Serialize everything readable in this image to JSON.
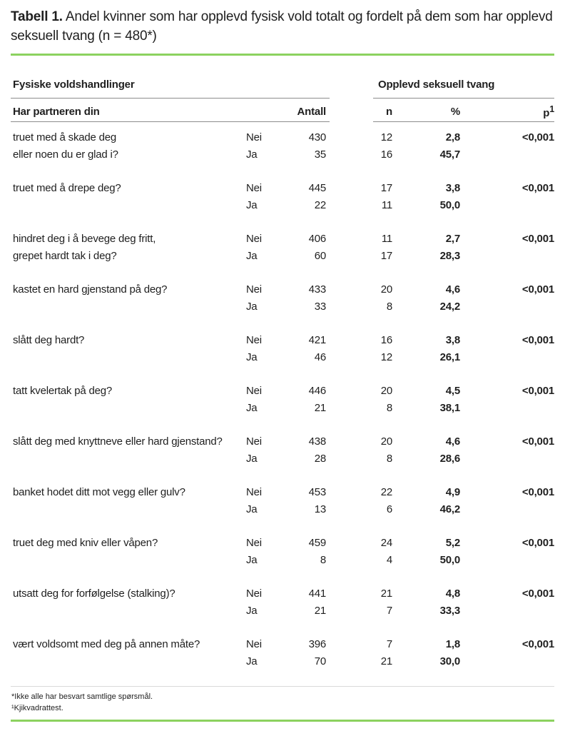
{
  "title": {
    "bold": "Tabell 1.",
    "rest": " Andel kvinner som har opplevd fysisk vold totalt og fordelt på dem som har opplevd seksuell tvang (n = 480*)"
  },
  "table": {
    "group_left": "Fysiske voldshandlinger",
    "group_right": "Opplevd seksuell tvang",
    "col_question": "Har partneren din",
    "col_antall": "Antall",
    "col_n": "n",
    "col_pct": "%",
    "col_p": "p",
    "col_p_sup": "1",
    "answer_labels": {
      "no": "Nei",
      "yes": "Ja"
    },
    "rows": [
      {
        "question_lines": [
          "truet med å skade deg",
          "eller noen du er glad i?"
        ],
        "nei": {
          "antall": "430",
          "n": "12",
          "pct": "2,8"
        },
        "ja": {
          "antall": "35",
          "n": "16",
          "pct": "45,7"
        },
        "p": "<0,001"
      },
      {
        "question_lines": [
          "truet med å drepe deg?"
        ],
        "nei": {
          "antall": "445",
          "n": "17",
          "pct": "3,8"
        },
        "ja": {
          "antall": "22",
          "n": "11",
          "pct": "50,0"
        },
        "p": "<0,001"
      },
      {
        "question_lines": [
          "hindret deg i å bevege deg fritt,",
          "grepet hardt tak i deg?"
        ],
        "nei": {
          "antall": "406",
          "n": "11",
          "pct": "2,7"
        },
        "ja": {
          "antall": "60",
          "n": "17",
          "pct": "28,3"
        },
        "p": "<0,001"
      },
      {
        "question_lines": [
          "kastet en hard gjenstand på deg?"
        ],
        "nei": {
          "antall": "433",
          "n": "20",
          "pct": "4,6"
        },
        "ja": {
          "antall": "33",
          "n": "8",
          "pct": "24,2"
        },
        "p": "<0,001"
      },
      {
        "question_lines": [
          "slått deg hardt?"
        ],
        "nei": {
          "antall": "421",
          "n": "16",
          "pct": "3,8"
        },
        "ja": {
          "antall": "46",
          "n": "12",
          "pct": "26,1"
        },
        "p": "<0,001"
      },
      {
        "question_lines": [
          "tatt kvelertak på deg?"
        ],
        "nei": {
          "antall": "446",
          "n": "20",
          "pct": "4,5"
        },
        "ja": {
          "antall": "21",
          "n": "8",
          "pct": "38,1"
        },
        "p": "<0,001"
      },
      {
        "question_lines": [
          "slått deg med knyttneve eller hard gjenstand?"
        ],
        "nei": {
          "antall": "438",
          "n": "20",
          "pct": "4,6"
        },
        "ja": {
          "antall": "28",
          "n": "8",
          "pct": "28,6"
        },
        "p": "<0,001"
      },
      {
        "question_lines": [
          "banket hodet ditt mot vegg eller gulv?"
        ],
        "nei": {
          "antall": "453",
          "n": "22",
          "pct": "4,9"
        },
        "ja": {
          "antall": "13",
          "n": "6",
          "pct": "46,2"
        },
        "p": "<0,001"
      },
      {
        "question_lines": [
          "truet deg med kniv eller våpen?"
        ],
        "nei": {
          "antall": "459",
          "n": "24",
          "pct": "5,2"
        },
        "ja": {
          "antall": "8",
          "n": "4",
          "pct": "50,0"
        },
        "p": "<0,001"
      },
      {
        "question_lines": [
          "utsatt deg for forfølgelse (stalking)?"
        ],
        "nei": {
          "antall": "441",
          "n": "21",
          "pct": "4,8"
        },
        "ja": {
          "antall": "21",
          "n": "7",
          "pct": "33,3"
        },
        "p": "<0,001"
      },
      {
        "question_lines": [
          "vært voldsomt med deg på annen måte?"
        ],
        "nei": {
          "antall": "396",
          "n": "7",
          "pct": "1,8"
        },
        "ja": {
          "antall": "70",
          "n": "21",
          "pct": "30,0"
        },
        "p": "<0,001"
      }
    ]
  },
  "footnotes": {
    "line1": "*Ikke alle har besvart samtlige spørsmål.",
    "line2": "¹Kjikvadrattest."
  },
  "colors": {
    "accent_line": "#8cd25f",
    "header_rule": "#8c8c8c",
    "footnote_rule": "#d9d9d9",
    "text": "#1f1f1f"
  }
}
